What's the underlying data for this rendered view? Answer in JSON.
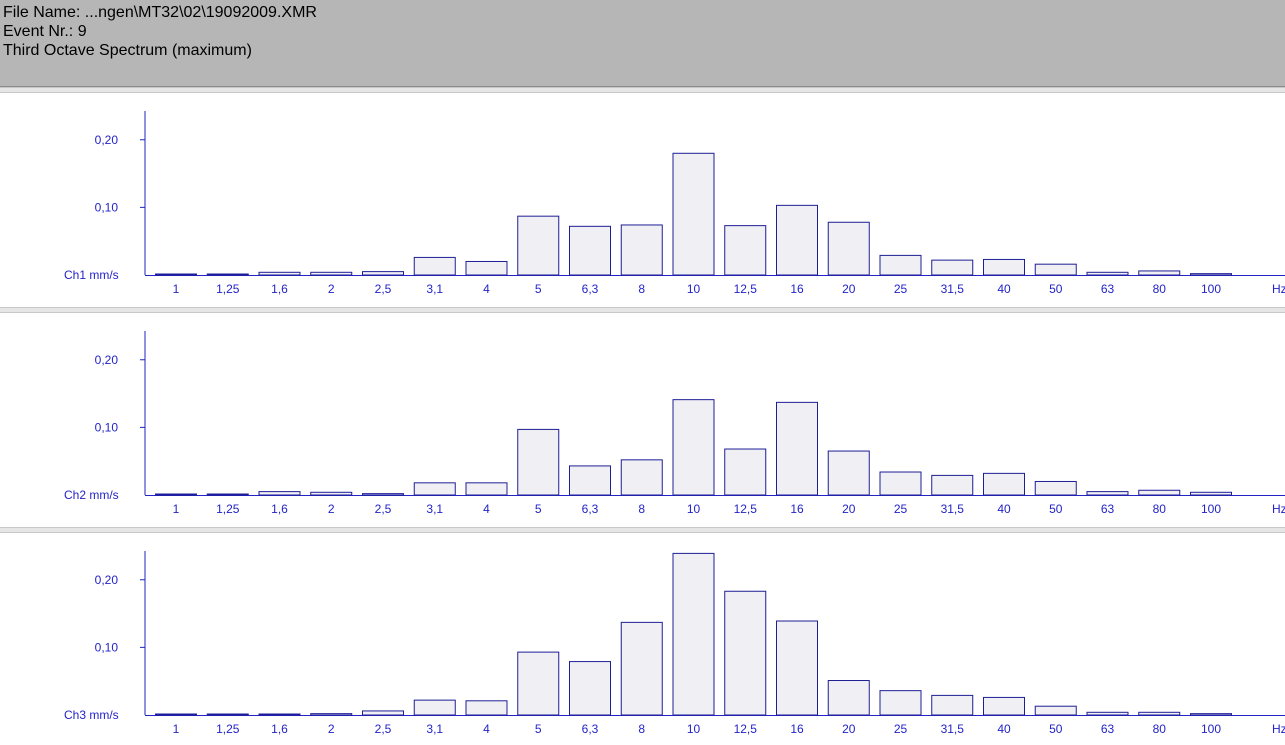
{
  "header": {
    "file_name": "File Name: ...ngen\\MT32\\02\\19092009.XMR",
    "event": "Event Nr.: 9",
    "title": "Third Octave Spectrum (maximum)"
  },
  "colors": {
    "axis": "#2323c8",
    "bar_fill": "#f0f0f4",
    "bar_stroke": "#1e1e96",
    "header_bg": "#b6b6b6"
  },
  "chart_data": [
    {
      "type": "bar",
      "channel_label": "Ch1 mm/s",
      "unit_label": "Hz",
      "categories": [
        "1",
        "1,25",
        "1,6",
        "2",
        "2,5",
        "3,1",
        "4",
        "5",
        "6,3",
        "8",
        "10",
        "12,5",
        "16",
        "20",
        "25",
        "31,5",
        "40",
        "50",
        "63",
        "80",
        "100"
      ],
      "values": [
        0.0,
        0.001,
        0.004,
        0.004,
        0.005,
        0.026,
        0.02,
        0.087,
        0.072,
        0.074,
        0.18,
        0.073,
        0.103,
        0.078,
        0.029,
        0.022,
        0.023,
        0.016,
        0.004,
        0.006,
        0.002
      ],
      "y_ticks": [
        {
          "value": 0.1,
          "label": "0,10"
        },
        {
          "value": 0.2,
          "label": "0,20"
        }
      ],
      "ylim": [
        0,
        0.24
      ]
    },
    {
      "type": "bar",
      "channel_label": "Ch2 mm/s",
      "unit_label": "Hz",
      "categories": [
        "1",
        "1,25",
        "1,6",
        "2",
        "2,5",
        "3,1",
        "4",
        "5",
        "6,3",
        "8",
        "10",
        "12,5",
        "16",
        "20",
        "25",
        "31,5",
        "40",
        "50",
        "63",
        "80",
        "100"
      ],
      "values": [
        0.001,
        0.001,
        0.005,
        0.004,
        0.002,
        0.018,
        0.018,
        0.097,
        0.043,
        0.052,
        0.141,
        0.068,
        0.137,
        0.065,
        0.034,
        0.029,
        0.032,
        0.02,
        0.005,
        0.007,
        0.004
      ],
      "y_ticks": [
        {
          "value": 0.1,
          "label": "0,10"
        },
        {
          "value": 0.2,
          "label": "0,20"
        }
      ],
      "ylim": [
        0,
        0.24
      ]
    },
    {
      "type": "bar",
      "channel_label": "Ch3 mm/s",
      "unit_label": "Hz",
      "categories": [
        "1",
        "1,25",
        "1,6",
        "2",
        "2,5",
        "3,1",
        "4",
        "5",
        "6,3",
        "8",
        "10",
        "12,5",
        "16",
        "20",
        "25",
        "31,5",
        "40",
        "50",
        "63",
        "80",
        "100"
      ],
      "values": [
        0.0,
        0.001,
        0.001,
        0.002,
        0.006,
        0.022,
        0.021,
        0.093,
        0.079,
        0.137,
        0.239,
        0.183,
        0.139,
        0.051,
        0.036,
        0.029,
        0.026,
        0.013,
        0.004,
        0.004,
        0.002
      ],
      "y_ticks": [
        {
          "value": 0.1,
          "label": "0,10"
        },
        {
          "value": 0.2,
          "label": "0,20"
        }
      ],
      "ylim": [
        0,
        0.24
      ]
    }
  ]
}
